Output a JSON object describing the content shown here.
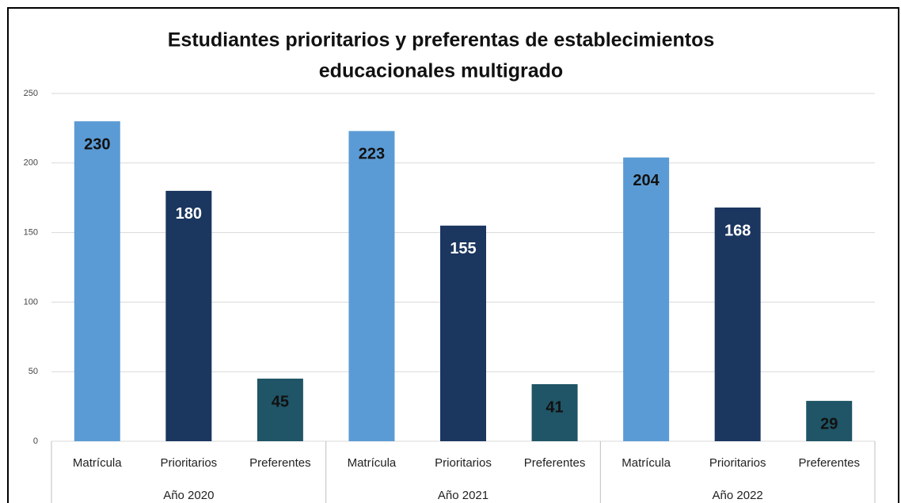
{
  "chart_data": {
    "type": "grouped_bar",
    "title": [
      "Estudiantes prioritarios y preferentas de establecimientos",
      "educacionales multigrado"
    ],
    "groups": [
      {
        "name": "Año 2020",
        "categories": [
          "Matrícula",
          "Prioritarios",
          "Preferentes"
        ],
        "values": [
          230,
          180,
          45
        ]
      },
      {
        "name": "Año 2021",
        "categories": [
          "Matrícula",
          "Prioritarios",
          "Preferentes"
        ],
        "values": [
          223,
          155,
          41
        ]
      },
      {
        "name": "Año 2022",
        "categories": [
          "Matrícula",
          "Prioritarios",
          "Preferentes"
        ],
        "values": [
          204,
          168,
          29
        ]
      }
    ],
    "colors": [
      "#5b9bd5",
      "#1b365f",
      "#1f5566"
    ],
    "label_colors": [
      "#111111",
      "#ffffff",
      "#111111"
    ],
    "ylim": [
      0,
      250
    ],
    "yticks": [
      0,
      50,
      100,
      150,
      200,
      250
    ],
    "grid": true
  }
}
